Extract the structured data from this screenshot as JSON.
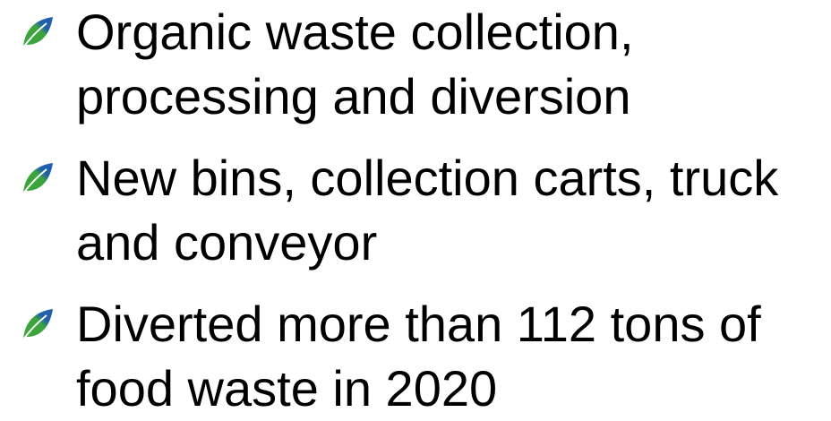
{
  "bullets": [
    "Organic waste collection, processing and diversion",
    "New bins, collection carts, truck and conveyor",
    "Diverted more than 112 tons of food waste in 2020"
  ]
}
